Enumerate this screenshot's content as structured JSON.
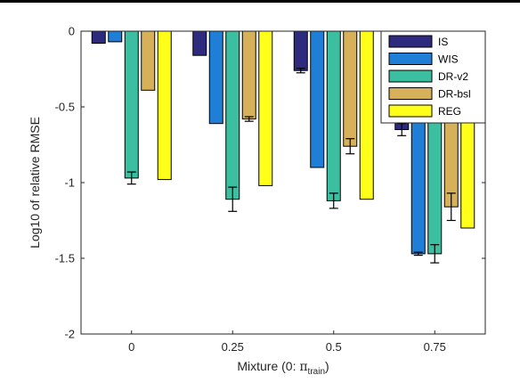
{
  "chart_data": {
    "type": "bar",
    "title": "",
    "xlabel": "Mixture (0: ",
    "xlabel_symbol": "π",
    "xlabel_subscript": "train",
    "xlabel_suffix": ")",
    "ylabel": "Log10 of relative RMSE",
    "categories": [
      "0",
      "0.25",
      "0.5",
      "0.75"
    ],
    "ylim": [
      -2,
      0
    ],
    "yticks": [
      0,
      -0.5,
      -1,
      -1.5,
      -2
    ],
    "ytick_labels": [
      "0",
      "-0.5",
      "-1",
      "-1.5",
      "-2"
    ],
    "grid": false,
    "legend_position": "top-right",
    "series": [
      {
        "name": "IS",
        "color": "#2e2a7e",
        "values": [
          -0.08,
          -0.16,
          -0.26,
          -0.65
        ],
        "errors": [
          0,
          0,
          0.015,
          0.04
        ]
      },
      {
        "name": "WIS",
        "color": "#1f7fd6",
        "values": [
          -0.07,
          -0.61,
          -0.9,
          -1.47
        ],
        "errors": [
          0,
          0,
          0,
          0.01
        ]
      },
      {
        "name": "DR-v2",
        "color": "#3cbfa0",
        "values": [
          -0.97,
          -1.11,
          -1.12,
          -1.47
        ],
        "errors": [
          0.04,
          0.08,
          0.05,
          0.06
        ]
      },
      {
        "name": "DR-bsl",
        "color": "#d6b15a",
        "values": [
          -0.39,
          -0.58,
          -0.76,
          -1.16
        ],
        "errors": [
          0,
          0.015,
          0.05,
          0.09
        ]
      },
      {
        "name": "REG",
        "color": "#ffff1a",
        "values": [
          -0.98,
          -1.02,
          -1.11,
          -1.3
        ],
        "errors": [
          0,
          0,
          0,
          0
        ]
      }
    ]
  }
}
